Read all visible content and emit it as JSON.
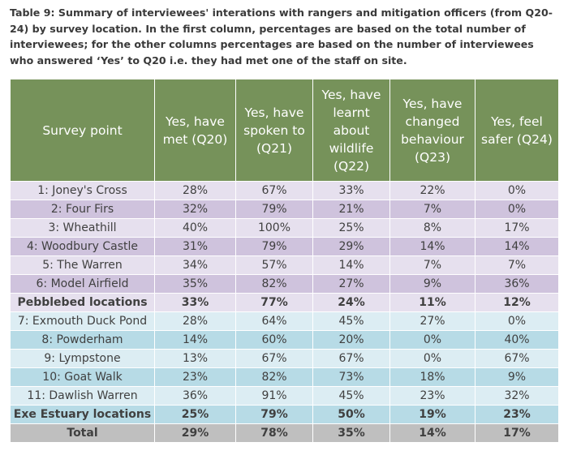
{
  "caption": "Table 9: Summary of interviewees' interations with rangers and mitigation officers (from Q20-24) by survey location. In the first column, percentages are based on the total number of interviewees; for the other columns percentages are based on the number of interviewees who answered ‘Yes’ to Q20 i.e. they had met one of the staff on site.",
  "table": {
    "header": [
      "Survey point",
      "Yes, have met (Q20)",
      "Yes, have spoken to (Q21)",
      "Yes, have learnt about wildlife (Q22)",
      "Yes, have changed behaviour (Q23)",
      "Yes, feel safer (Q24)"
    ],
    "rows": [
      [
        "1: Joney's Cross",
        "28%",
        "67%",
        "33%",
        "22%",
        "0%"
      ],
      [
        "2: Four Firs",
        "32%",
        "79%",
        "21%",
        "7%",
        "0%"
      ],
      [
        "3: Wheathill",
        "40%",
        "100%",
        "25%",
        "8%",
        "17%"
      ],
      [
        "4: Woodbury Castle",
        "31%",
        "79%",
        "29%",
        "14%",
        "14%"
      ],
      [
        "5: The Warren",
        "34%",
        "57%",
        "14%",
        "7%",
        "7%"
      ],
      [
        "6: Model Airfield",
        "35%",
        "82%",
        "27%",
        "9%",
        "36%"
      ],
      [
        "Pebblebed locations",
        "33%",
        "77%",
        "24%",
        "11%",
        "12%"
      ],
      [
        "7: Exmouth Duck Pond",
        "28%",
        "64%",
        "45%",
        "27%",
        "0%"
      ],
      [
        "8: Powderham",
        "14%",
        "60%",
        "20%",
        "0%",
        "40%"
      ],
      [
        "9: Lympstone",
        "13%",
        "67%",
        "67%",
        "0%",
        "67%"
      ],
      [
        "10: Goat Walk",
        "23%",
        "82%",
        "73%",
        "18%",
        "9%"
      ],
      [
        "11: Dawlish Warren",
        "36%",
        "91%",
        "45%",
        "23%",
        "32%"
      ],
      [
        "Exe Estuary locations",
        "25%",
        "79%",
        "50%",
        "19%",
        "23%"
      ],
      [
        "Total",
        "29%",
        "78%",
        "35%",
        "14%",
        "17%"
      ]
    ]
  }
}
